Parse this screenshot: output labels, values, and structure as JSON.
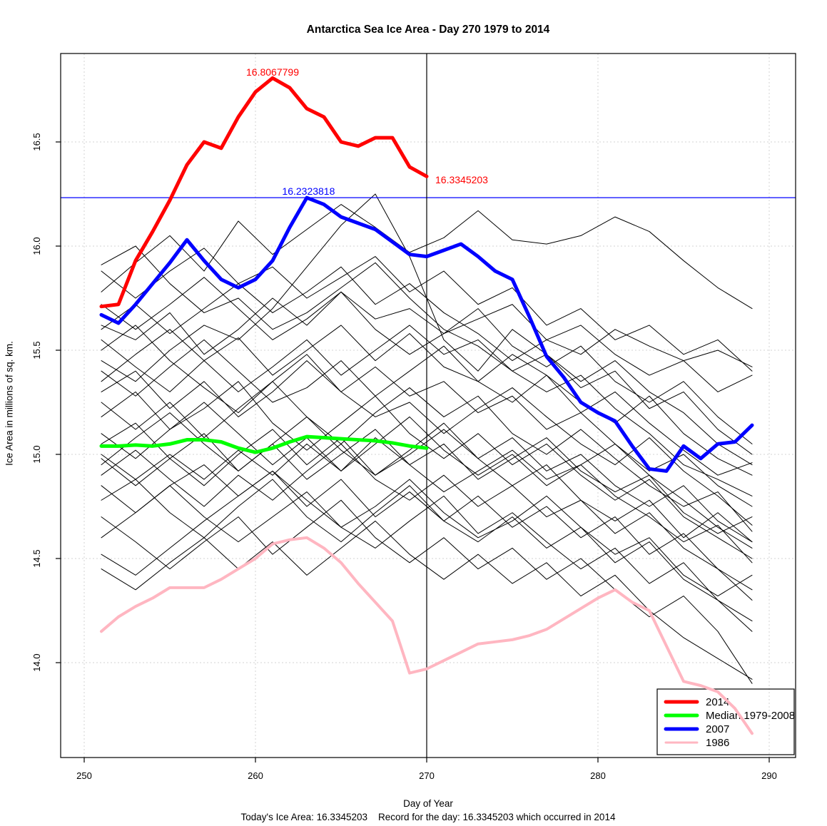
{
  "footer": {
    "text": "Today's Ice Area: 16.3345203    Record for the day: 16.3345203 which occurred in 2014"
  },
  "chart_data": {
    "type": "line",
    "title": "Antarctica Sea Ice Area - Day 270 1979 to 2014",
    "xlabel": "Day of Year",
    "ylabel": "Ice Area in millions of sq. km.",
    "xlim": [
      248.6,
      291.5
    ],
    "ylim": [
      13.55,
      16.92
    ],
    "x_ticks": [
      250,
      260,
      270,
      280,
      290
    ],
    "y_ticks": [
      14.0,
      14.5,
      15.0,
      15.5,
      16.0,
      16.5
    ],
    "grid": "dashed",
    "grid_color": "#D3D3D3",
    "reference_lines": {
      "h_value": 16.2323818,
      "h_color": "#0000FF",
      "v_day": 270,
      "v_color": "#000000"
    },
    "annotations": [
      {
        "text": "16.8067799",
        "color": "#FF0000",
        "anchor": "middle",
        "day": 261.0,
        "value": 16.818
      },
      {
        "text": "16.2323818",
        "color": "#0000FF",
        "anchor": "middle",
        "day": 263.1,
        "value": 16.246
      },
      {
        "text": "16.3345203",
        "color": "#FF0000",
        "anchor": "start",
        "day": 270.5,
        "value": 16.301
      }
    ],
    "legend": {
      "position": "bottom-right",
      "entries": [
        {
          "label": "2014",
          "color": "#FF0000",
          "sample_width": 5
        },
        {
          "label": "Median 1979-2008",
          "color": "#00FF00",
          "sample_width": 5
        },
        {
          "label": "2007",
          "color": "#0000FF",
          "sample_width": 5
        },
        {
          "label": "1986",
          "color": "#FFB6C1",
          "sample_width": 3
        }
      ]
    },
    "series": [
      {
        "name": "1986",
        "color": "#FFB6C1",
        "stroke_width": 4,
        "x_start": 251,
        "x_step": 1,
        "values": [
          14.15,
          14.22,
          14.27,
          14.31,
          14.36,
          14.36,
          14.36,
          14.4,
          14.45,
          14.5,
          14.57,
          14.59,
          14.6,
          14.55,
          14.48,
          14.38,
          14.29,
          14.2,
          13.95,
          13.97,
          14.01,
          14.05,
          14.09,
          14.1,
          14.11,
          14.13,
          14.16,
          14.21,
          14.26,
          14.31,
          14.35,
          14.29,
          14.25,
          14.08,
          13.91,
          13.89,
          13.86,
          13.78,
          13.66
        ]
      },
      {
        "name": "Median 1979-2008",
        "color": "#00FF00",
        "stroke_width": 5,
        "x_start": 251,
        "x_step": 1,
        "values": [
          15.04,
          15.04,
          15.045,
          15.04,
          15.05,
          15.07,
          15.07,
          15.06,
          15.03,
          15.01,
          15.03,
          15.06,
          15.085,
          15.08,
          15.075,
          15.07,
          15.065,
          15.055,
          15.04,
          15.03
        ]
      },
      {
        "name": "2007",
        "color": "#0000FF",
        "stroke_width": 5,
        "x_start": 251,
        "x_step": 1,
        "values": [
          15.67,
          15.63,
          15.72,
          15.82,
          15.92,
          16.03,
          15.93,
          15.84,
          15.8,
          15.84,
          15.93,
          16.09,
          16.2323818,
          16.2,
          16.14,
          16.11,
          16.08,
          16.02,
          15.96,
          15.95,
          15.98,
          16.01,
          15.95,
          15.88,
          15.84,
          15.66,
          15.47,
          15.37,
          15.25,
          15.2,
          15.16,
          15.04,
          14.93,
          14.92,
          15.04,
          14.98,
          15.05,
          15.06,
          15.14
        ]
      },
      {
        "name": "2014",
        "color": "#FF0000",
        "stroke_width": 5,
        "x_start": 251,
        "x_step": 1,
        "values": [
          15.71,
          15.72,
          15.93,
          16.07,
          16.22,
          16.39,
          16.5,
          16.47,
          16.62,
          16.74,
          16.8067799,
          16.76,
          16.66,
          16.62,
          16.5,
          16.48,
          16.52,
          16.52,
          16.38,
          16.3345203
        ]
      }
    ],
    "background_series": {
      "name": "individual years 1979-2013",
      "color": "#000000",
      "stroke_width": 1,
      "x_start": 251,
      "x_step": 2,
      "lines": [
        [
          15.78,
          15.92,
          16.05,
          15.88,
          16.12,
          15.96,
          16.08,
          16.2,
          16.09,
          15.97,
          16.04,
          16.17,
          16.03,
          16.01,
          16.05,
          16.14,
          16.07,
          15.93,
          15.8,
          15.7
        ],
        [
          15.91,
          16.0,
          15.82,
          15.68,
          15.75,
          15.6,
          15.68,
          15.8,
          15.92,
          15.75,
          15.6,
          15.52,
          15.4,
          15.3,
          15.38,
          15.22,
          15.1,
          14.95,
          14.88,
          14.8
        ],
        [
          15.45,
          15.35,
          15.5,
          15.62,
          15.55,
          15.7,
          15.9,
          16.1,
          16.25,
          15.95,
          15.55,
          15.4,
          15.6,
          15.48,
          15.35,
          15.45,
          15.3,
          15.2,
          15.05,
          14.95
        ],
        [
          15.62,
          15.55,
          15.68,
          15.48,
          15.6,
          15.75,
          15.62,
          15.78,
          15.65,
          15.7,
          15.58,
          15.65,
          15.72,
          15.55,
          15.48,
          15.6,
          15.52,
          15.45,
          15.5,
          15.42
        ],
        [
          15.55,
          15.42,
          15.3,
          15.45,
          15.56,
          15.38,
          15.5,
          15.62,
          15.45,
          15.58,
          15.42,
          15.35,
          15.48,
          15.38,
          15.25,
          15.15,
          15.28,
          15.1,
          14.98,
          14.9
        ],
        [
          15.5,
          15.62,
          15.45,
          15.32,
          15.2,
          15.35,
          15.48,
          15.3,
          15.42,
          15.28,
          15.35,
          15.2,
          15.28,
          15.12,
          15.2,
          15.05,
          14.92,
          15.0,
          14.85,
          14.75
        ],
        [
          15.4,
          15.28,
          15.42,
          15.55,
          15.4,
          15.25,
          15.32,
          15.45,
          15.28,
          15.4,
          15.52,
          15.35,
          15.25,
          15.38,
          15.2,
          15.3,
          15.15,
          15.02,
          14.9,
          14.96
        ],
        [
          15.3,
          15.4,
          15.22,
          15.35,
          15.18,
          15.3,
          15.45,
          15.3,
          15.18,
          15.25,
          15.1,
          15.22,
          15.32,
          15.18,
          15.05,
          14.95,
          15.08,
          14.92,
          14.8,
          14.66
        ],
        [
          15.25,
          15.12,
          15.25,
          15.08,
          15.22,
          15.35,
          15.18,
          15.05,
          15.2,
          15.32,
          15.18,
          15.28,
          15.1,
          15.0,
          15.12,
          14.98,
          14.85,
          14.75,
          14.82,
          14.63
        ],
        [
          15.18,
          15.3,
          15.12,
          15.22,
          15.35,
          15.15,
          15.02,
          15.15,
          15.28,
          15.1,
          14.98,
          15.1,
          14.95,
          15.05,
          14.9,
          14.78,
          14.88,
          14.7,
          14.6,
          14.5
        ],
        [
          15.1,
          14.98,
          15.12,
          15.25,
          15.1,
          14.95,
          15.08,
          14.92,
          15.05,
          15.18,
          15.02,
          14.9,
          15.0,
          14.85,
          14.95,
          15.05,
          14.9,
          14.78,
          14.65,
          14.55
        ],
        [
          15.05,
          15.15,
          14.98,
          14.85,
          15.0,
          15.12,
          14.95,
          15.08,
          14.9,
          15.0,
          15.12,
          14.98,
          14.85,
          14.95,
          14.78,
          14.68,
          14.78,
          14.6,
          14.72,
          14.58
        ],
        [
          14.98,
          14.85,
          14.98,
          15.1,
          14.92,
          15.05,
          14.88,
          15.0,
          15.12,
          14.95,
          14.82,
          14.92,
          15.02,
          14.88,
          14.95,
          14.8,
          14.7,
          14.58,
          14.66,
          14.48
        ],
        [
          14.9,
          15.02,
          14.88,
          14.75,
          14.9,
          14.78,
          14.92,
          15.05,
          14.88,
          14.78,
          14.9,
          14.75,
          14.85,
          14.7,
          14.78,
          14.62,
          14.72,
          14.55,
          14.45,
          14.35
        ],
        [
          14.85,
          14.72,
          14.85,
          14.95,
          14.8,
          14.92,
          14.75,
          14.88,
          14.7,
          14.82,
          14.68,
          14.8,
          14.65,
          14.75,
          14.6,
          14.7,
          14.52,
          14.62,
          14.45,
          14.3
        ],
        [
          14.78,
          14.88,
          14.72,
          14.6,
          14.75,
          14.88,
          14.7,
          14.58,
          14.72,
          14.85,
          14.68,
          14.58,
          14.7,
          14.55,
          14.65,
          14.48,
          14.58,
          14.4,
          14.3,
          14.15
        ],
        [
          14.7,
          14.58,
          14.45,
          14.58,
          14.7,
          14.52,
          14.65,
          14.78,
          14.6,
          14.48,
          14.6,
          14.45,
          14.55,
          14.4,
          14.5,
          14.35,
          14.22,
          14.32,
          14.15,
          13.9
        ],
        [
          14.45,
          14.35,
          14.48,
          14.6,
          14.45,
          14.58,
          14.42,
          14.55,
          14.68,
          14.52,
          14.4,
          14.52,
          14.38,
          14.48,
          14.32,
          14.42,
          14.25,
          14.12,
          14.02,
          13.92
        ],
        [
          15.72,
          15.6,
          15.72,
          15.85,
          15.7,
          15.55,
          15.65,
          15.78,
          15.6,
          15.48,
          15.58,
          15.7,
          15.52,
          15.42,
          15.52,
          15.35,
          15.25,
          15.35,
          15.18,
          15.05
        ],
        [
          15.35,
          15.48,
          15.6,
          15.45,
          15.3,
          15.42,
          15.55,
          15.38,
          15.5,
          15.62,
          15.48,
          15.55,
          15.4,
          15.48,
          15.32,
          15.4,
          15.22,
          15.3,
          15.12,
          15.0
        ],
        [
          15.0,
          14.88,
          15.0,
          14.88,
          15.02,
          14.9,
          15.05,
          14.92,
          15.08,
          14.95,
          15.05,
          14.88,
          14.98,
          15.08,
          14.92,
          14.82,
          14.9,
          14.72,
          14.62,
          14.7
        ],
        [
          14.6,
          14.72,
          14.85,
          14.7,
          14.58,
          14.7,
          14.82,
          14.65,
          14.55,
          14.68,
          14.8,
          14.62,
          14.72,
          14.58,
          14.45,
          14.55,
          14.38,
          14.48,
          14.3,
          14.2
        ],
        [
          15.6,
          15.72,
          15.58,
          15.7,
          15.82,
          15.68,
          15.78,
          15.9,
          15.72,
          15.82,
          15.68,
          15.58,
          15.45,
          15.55,
          15.62,
          15.48,
          15.38,
          15.45,
          15.3,
          15.38
        ],
        [
          14.52,
          14.42,
          14.55,
          14.68,
          14.8,
          14.92,
          14.78,
          14.65,
          14.75,
          14.88,
          14.72,
          14.6,
          14.68,
          14.8,
          14.65,
          14.52,
          14.6,
          14.42,
          14.32,
          14.42
        ],
        [
          15.88,
          15.75,
          15.88,
          15.99,
          15.82,
          15.9,
          15.75,
          15.85,
          15.95,
          15.78,
          15.88,
          15.72,
          15.8,
          15.62,
          15.7,
          15.55,
          15.62,
          15.48,
          15.55,
          15.4
        ],
        [
          14.95,
          15.08,
          15.2,
          15.05,
          14.92,
          15.05,
          15.18,
          15.02,
          14.9,
          15.02,
          15.15,
          14.98,
          15.08,
          14.92,
          15.0,
          14.85,
          14.75,
          14.85,
          14.68,
          14.58
        ]
      ]
    }
  }
}
